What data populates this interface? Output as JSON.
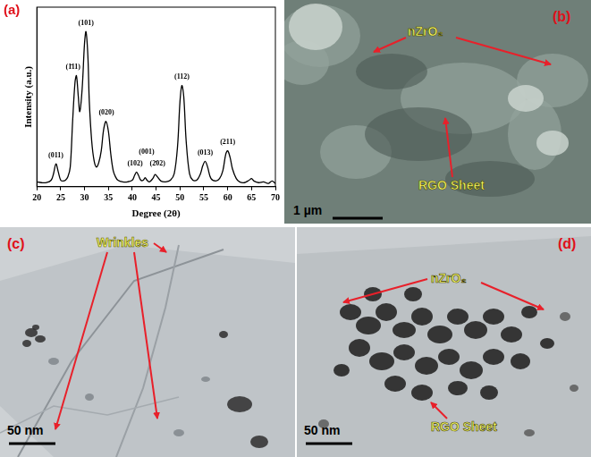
{
  "chart_data": {
    "type": "line",
    "title": "(a)",
    "x_label": "Degree (2θ)",
    "y_label": "Intensity (a.u.)",
    "x": [
      20,
      21,
      22,
      23,
      23.5,
      24,
      24.5,
      25,
      25.5,
      26,
      26.5,
      27,
      27.5,
      28,
      28.3,
      28.7,
      29,
      29.5,
      30,
      30.3,
      30.7,
      31,
      31.5,
      32,
      32.5,
      33,
      33.5,
      34,
      34.5,
      35,
      35.5,
      36,
      36.5,
      37,
      38,
      39,
      40,
      40.5,
      40.9,
      41.3,
      41.8,
      42.3,
      42.7,
      43.1,
      43.6,
      44.3,
      44.8,
      45.3,
      46,
      47,
      48,
      48.8,
      49.5,
      50,
      50.4,
      50.8,
      51.3,
      52,
      52.7,
      53.5,
      54.3,
      54.8,
      55.3,
      55.8,
      56.5,
      57.5,
      58.3,
      59,
      59.6,
      60,
      60.5,
      61,
      61.8,
      62.5,
      63.5,
      64.5,
      65,
      65.5,
      66.5,
      67.5,
      68.5,
      69.3,
      70
    ],
    "values": [
      3,
      2.5,
      2.5,
      4,
      8,
      14,
      9,
      4,
      3.5,
      4,
      6,
      12,
      40,
      64,
      68,
      55,
      46,
      60,
      88,
      95,
      80,
      52,
      28,
      16,
      12,
      15,
      22,
      35,
      40,
      34,
      20,
      10,
      6,
      4,
      3,
      3,
      4,
      7,
      9,
      7,
      4,
      4,
      5.5,
      4,
      3,
      5,
      7.5,
      6,
      3.5,
      3,
      4,
      8,
      25,
      52,
      62,
      55,
      28,
      8,
      4,
      4,
      8,
      13,
      15.5,
      12,
      5,
      3.5,
      5,
      10,
      20,
      22,
      18,
      11,
      5,
      3,
      2.5,
      4,
      5,
      3.5,
      2.5,
      3,
      2,
      3.5,
      2
    ],
    "color": "#000000",
    "xlim": [
      20,
      70
    ],
    "xticks": [
      20,
      25,
      30,
      35,
      40,
      45,
      50,
      55,
      60,
      65,
      70
    ],
    "ylim": [
      0,
      110
    ],
    "yticks": [],
    "grid": false,
    "tick_labels": "x",
    "annotations": [
      {
        "text": "(011)",
        "x": 24,
        "y": 17
      },
      {
        "text": "(1̄11)",
        "x": 27.6,
        "y": 71
      },
      {
        "text": "(101)",
        "x": 30.3,
        "y": 98
      },
      {
        "text": "(020)",
        "x": 34.6,
        "y": 43
      },
      {
        "text": "(102)",
        "x": 40.6,
        "y": 12
      },
      {
        "text": "(001)",
        "x": 43,
        "y": 19
      },
      {
        "text": "(2̄02)",
        "x": 45.3,
        "y": 12
      },
      {
        "text": "(112)",
        "x": 50.4,
        "y": 65
      },
      {
        "text": "(013)",
        "x": 55.3,
        "y": 18.5
      },
      {
        "text": "(211)",
        "x": 60,
        "y": 25
      }
    ]
  },
  "panels": [
    {
      "label": "(b)",
      "annotations": [
        "nZrO₂",
        "RGO Sheet"
      ],
      "scale_bar": "1 µm"
    },
    {
      "label": "(c)",
      "annotations": [
        "Wrinkles"
      ],
      "scale_bar": "50 nm"
    },
    {
      "label": "(d)",
      "annotations": [
        "nZrO₂",
        "RGO Sheet"
      ],
      "scale_bar": "50 nm"
    }
  ]
}
